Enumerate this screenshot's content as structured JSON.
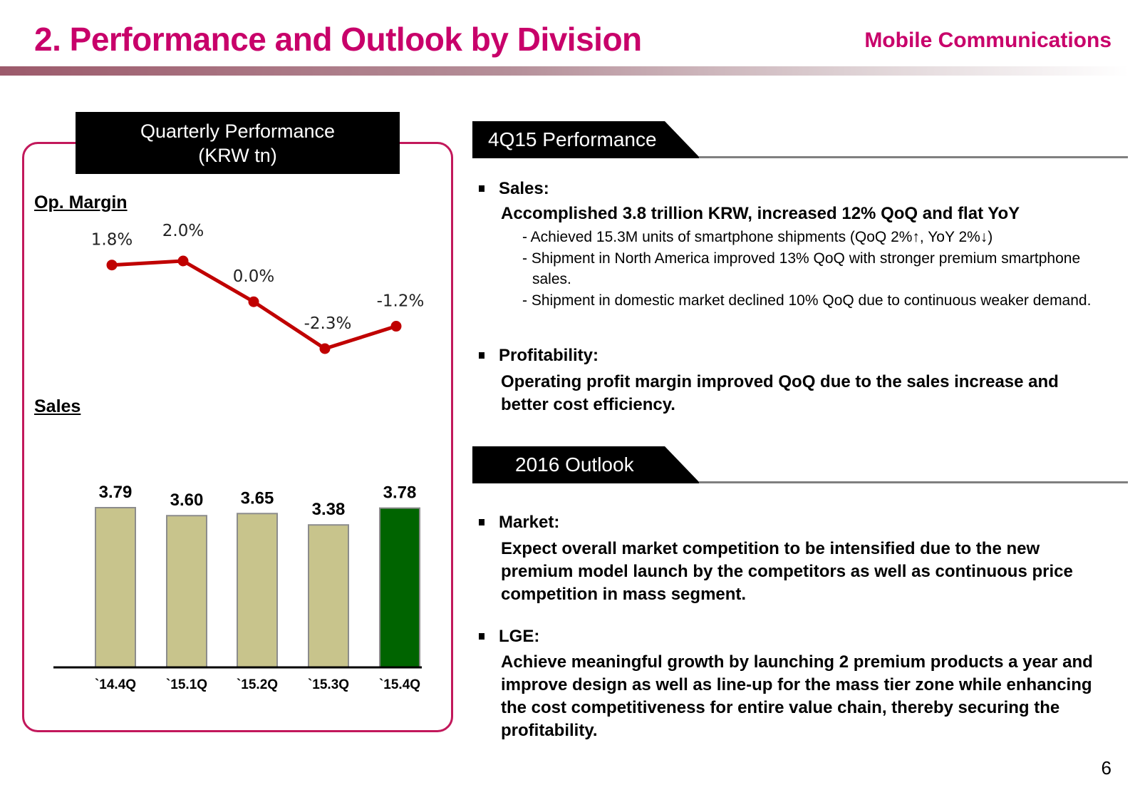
{
  "header": {
    "title": "2. Performance and Outlook by Division",
    "division": "Mobile Communications"
  },
  "left_panel": {
    "box_title_line1": "Quarterly Performance",
    "box_title_line2": "(KRW tn)",
    "op_margin_label": "Op. Margin",
    "sales_label": "Sales"
  },
  "colors": {
    "brand": "#c8006a",
    "line": "#c00000",
    "bar_default": "#c8c48c",
    "bar_highlight": "#006400",
    "box_border": "#c2185b"
  },
  "chart_data": [
    {
      "type": "line",
      "title": "Op. Margin",
      "categories": [
        "`14.4Q",
        "`15.1Q",
        "`15.2Q",
        "`15.3Q",
        "`15.4Q"
      ],
      "values": [
        1.8,
        2.0,
        0.0,
        -2.3,
        -1.2
      ],
      "value_labels": [
        "1.8%",
        "2.0%",
        "0.0%",
        "-2.3%",
        "-1.2%"
      ],
      "unit": "%",
      "ylim": [
        -2.5,
        2.2
      ],
      "grid": false,
      "legend": "none"
    },
    {
      "type": "bar",
      "title": "Sales",
      "subtitle": "KRW tn",
      "categories": [
        "`14.4Q",
        "`15.1Q",
        "`15.2Q",
        "`15.3Q",
        "`15.4Q"
      ],
      "values": [
        3.79,
        3.6,
        3.65,
        3.38,
        3.78
      ],
      "value_labels": [
        "3.79",
        "3.60",
        "3.65",
        "3.38",
        "3.78"
      ],
      "highlight_index": 4,
      "ylim": [
        0,
        4.0
      ],
      "grid": false,
      "legend": "none"
    }
  ],
  "performance": {
    "tab_label": "4Q15 Performance",
    "sales_heading": "Sales:",
    "sales_summary": "Accomplished 3.8 trillion KRW, increased 12% QoQ and flat YoY",
    "sales_details": [
      "- Achieved 15.3M units of smartphone shipments (QoQ 2%↑, YoY 2%↓)",
      "- Shipment in North America improved 13% QoQ with stronger premium smartphone sales.",
      "- Shipment in domestic market declined 10% QoQ due to continuous weaker demand."
    ],
    "profit_heading": "Profitability:",
    "profit_text": "Operating profit margin improved QoQ due to the sales increase and better cost efficiency."
  },
  "outlook": {
    "tab_label": "2016 Outlook",
    "market_heading": "Market:",
    "market_text": "Expect overall market competition to be intensified due to the new premium model launch by the competitors as well as continuous price competition in mass segment.",
    "lge_heading": "LGE:",
    "lge_text": "Achieve meaningful growth by launching 2 premium products a year and improve design as well as line-up for the mass tier zone while enhancing the cost competitiveness for entire value chain, thereby securing the profitability."
  },
  "page_number": "6"
}
